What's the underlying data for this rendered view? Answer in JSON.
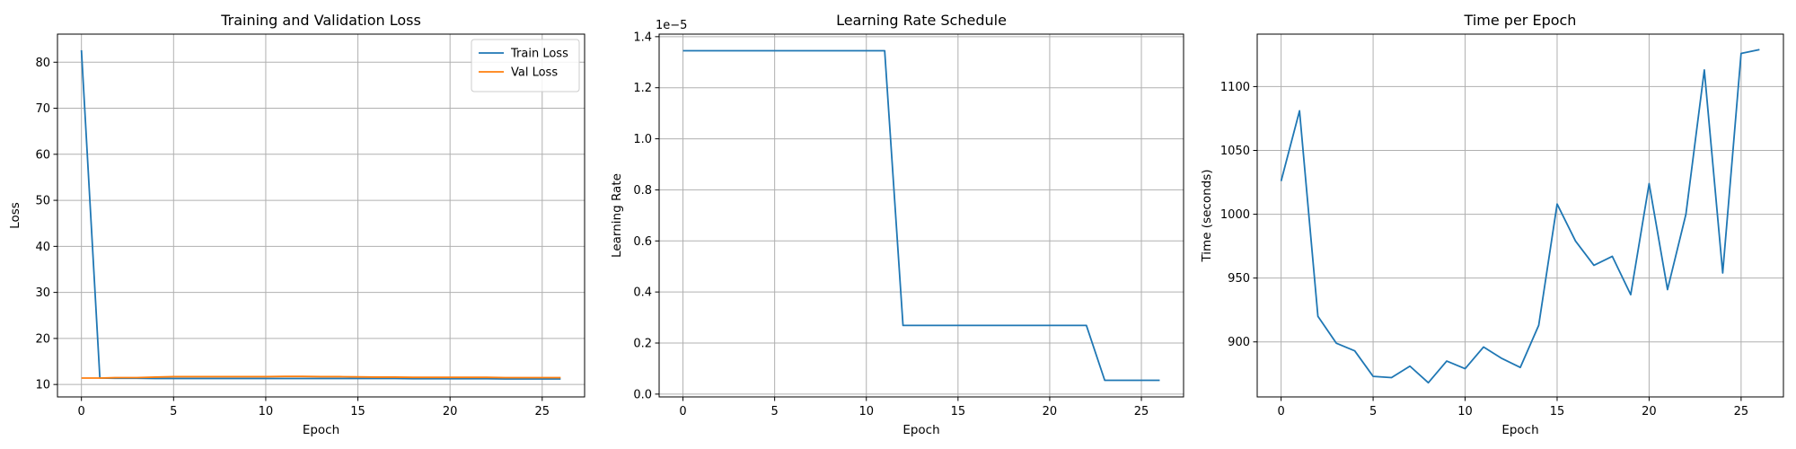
{
  "chart_data": [
    {
      "type": "line",
      "title": "Training and Validation Loss",
      "xlabel": "Epoch",
      "ylabel": "Loss",
      "xlim": [
        -1.3,
        27.3
      ],
      "ylim": [
        7.3,
        86.1
      ],
      "xticks": [
        0,
        5,
        10,
        15,
        20,
        25
      ],
      "yticks": [
        10,
        20,
        30,
        40,
        50,
        60,
        70,
        80
      ],
      "grid": true,
      "legend": "top-right",
      "x": [
        0,
        1,
        2,
        3,
        4,
        5,
        6,
        7,
        8,
        9,
        10,
        11,
        12,
        13,
        14,
        15,
        16,
        17,
        18,
        19,
        20,
        21,
        22,
        23,
        24,
        25,
        26
      ],
      "series": [
        {
          "name": "Train Loss",
          "color": "#1f77b4",
          "values": [
            82.6,
            11.4,
            11.35,
            11.35,
            11.3,
            11.3,
            11.3,
            11.3,
            11.3,
            11.3,
            11.3,
            11.3,
            11.3,
            11.3,
            11.3,
            11.3,
            11.3,
            11.3,
            11.25,
            11.25,
            11.25,
            11.25,
            11.25,
            11.2,
            11.2,
            11.2,
            11.2
          ]
        },
        {
          "name": "Val Loss",
          "color": "#ff7f0e",
          "values": [
            11.4,
            11.4,
            11.5,
            11.5,
            11.6,
            11.7,
            11.7,
            11.7,
            11.7,
            11.7,
            11.7,
            11.75,
            11.75,
            11.7,
            11.7,
            11.65,
            11.6,
            11.6,
            11.55,
            11.55,
            11.55,
            11.55,
            11.55,
            11.5,
            11.5,
            11.5,
            11.5
          ]
        }
      ]
    },
    {
      "type": "line",
      "title": "Learning Rate Schedule",
      "xlabel": "Epoch",
      "ylabel": "Learning Rate",
      "offset_text": "1e−5",
      "xlim": [
        -1.3,
        27.3
      ],
      "ylim": [
        -0.011,
        1.41
      ],
      "xticks": [
        0,
        5,
        10,
        15,
        20,
        25
      ],
      "yticks": [
        0.0,
        0.2,
        0.4,
        0.6,
        0.8,
        1.0,
        1.2,
        1.4
      ],
      "tick_format": "1dp",
      "grid": true,
      "x": [
        0,
        1,
        2,
        3,
        4,
        5,
        6,
        7,
        8,
        9,
        10,
        11,
        12,
        13,
        14,
        15,
        16,
        17,
        18,
        19,
        20,
        21,
        22,
        23,
        24,
        25,
        26
      ],
      "series": [
        {
          "color": "#1f77b4",
          "values": [
            1.345,
            1.345,
            1.345,
            1.345,
            1.345,
            1.345,
            1.345,
            1.345,
            1.345,
            1.345,
            1.345,
            1.345,
            0.269,
            0.269,
            0.269,
            0.269,
            0.269,
            0.269,
            0.269,
            0.269,
            0.269,
            0.269,
            0.269,
            0.054,
            0.054,
            0.054,
            0.054
          ]
        }
      ]
    },
    {
      "type": "line",
      "title": "Time per Epoch",
      "xlabel": "Epoch",
      "ylabel": "Time (seconds)",
      "xlim": [
        -1.3,
        27.3
      ],
      "ylim": [
        856.9,
        1141.1
      ],
      "xticks": [
        0,
        5,
        10,
        15,
        20,
        25
      ],
      "yticks": [
        900,
        950,
        1000,
        1050,
        1100
      ],
      "grid": true,
      "x": [
        0,
        1,
        2,
        3,
        4,
        5,
        6,
        7,
        8,
        9,
        10,
        11,
        12,
        13,
        14,
        15,
        16,
        17,
        18,
        19,
        20,
        21,
        22,
        23,
        24,
        25,
        26
      ],
      "series": [
        {
          "color": "#1f77b4",
          "values": [
            1026,
            1081,
            920,
            899,
            893,
            873,
            872,
            881,
            868,
            885,
            879,
            896,
            887,
            880,
            913,
            1008,
            979,
            960,
            967,
            937,
            1024,
            941,
            1000,
            1113,
            954,
            1126,
            1129
          ]
        }
      ]
    }
  ]
}
